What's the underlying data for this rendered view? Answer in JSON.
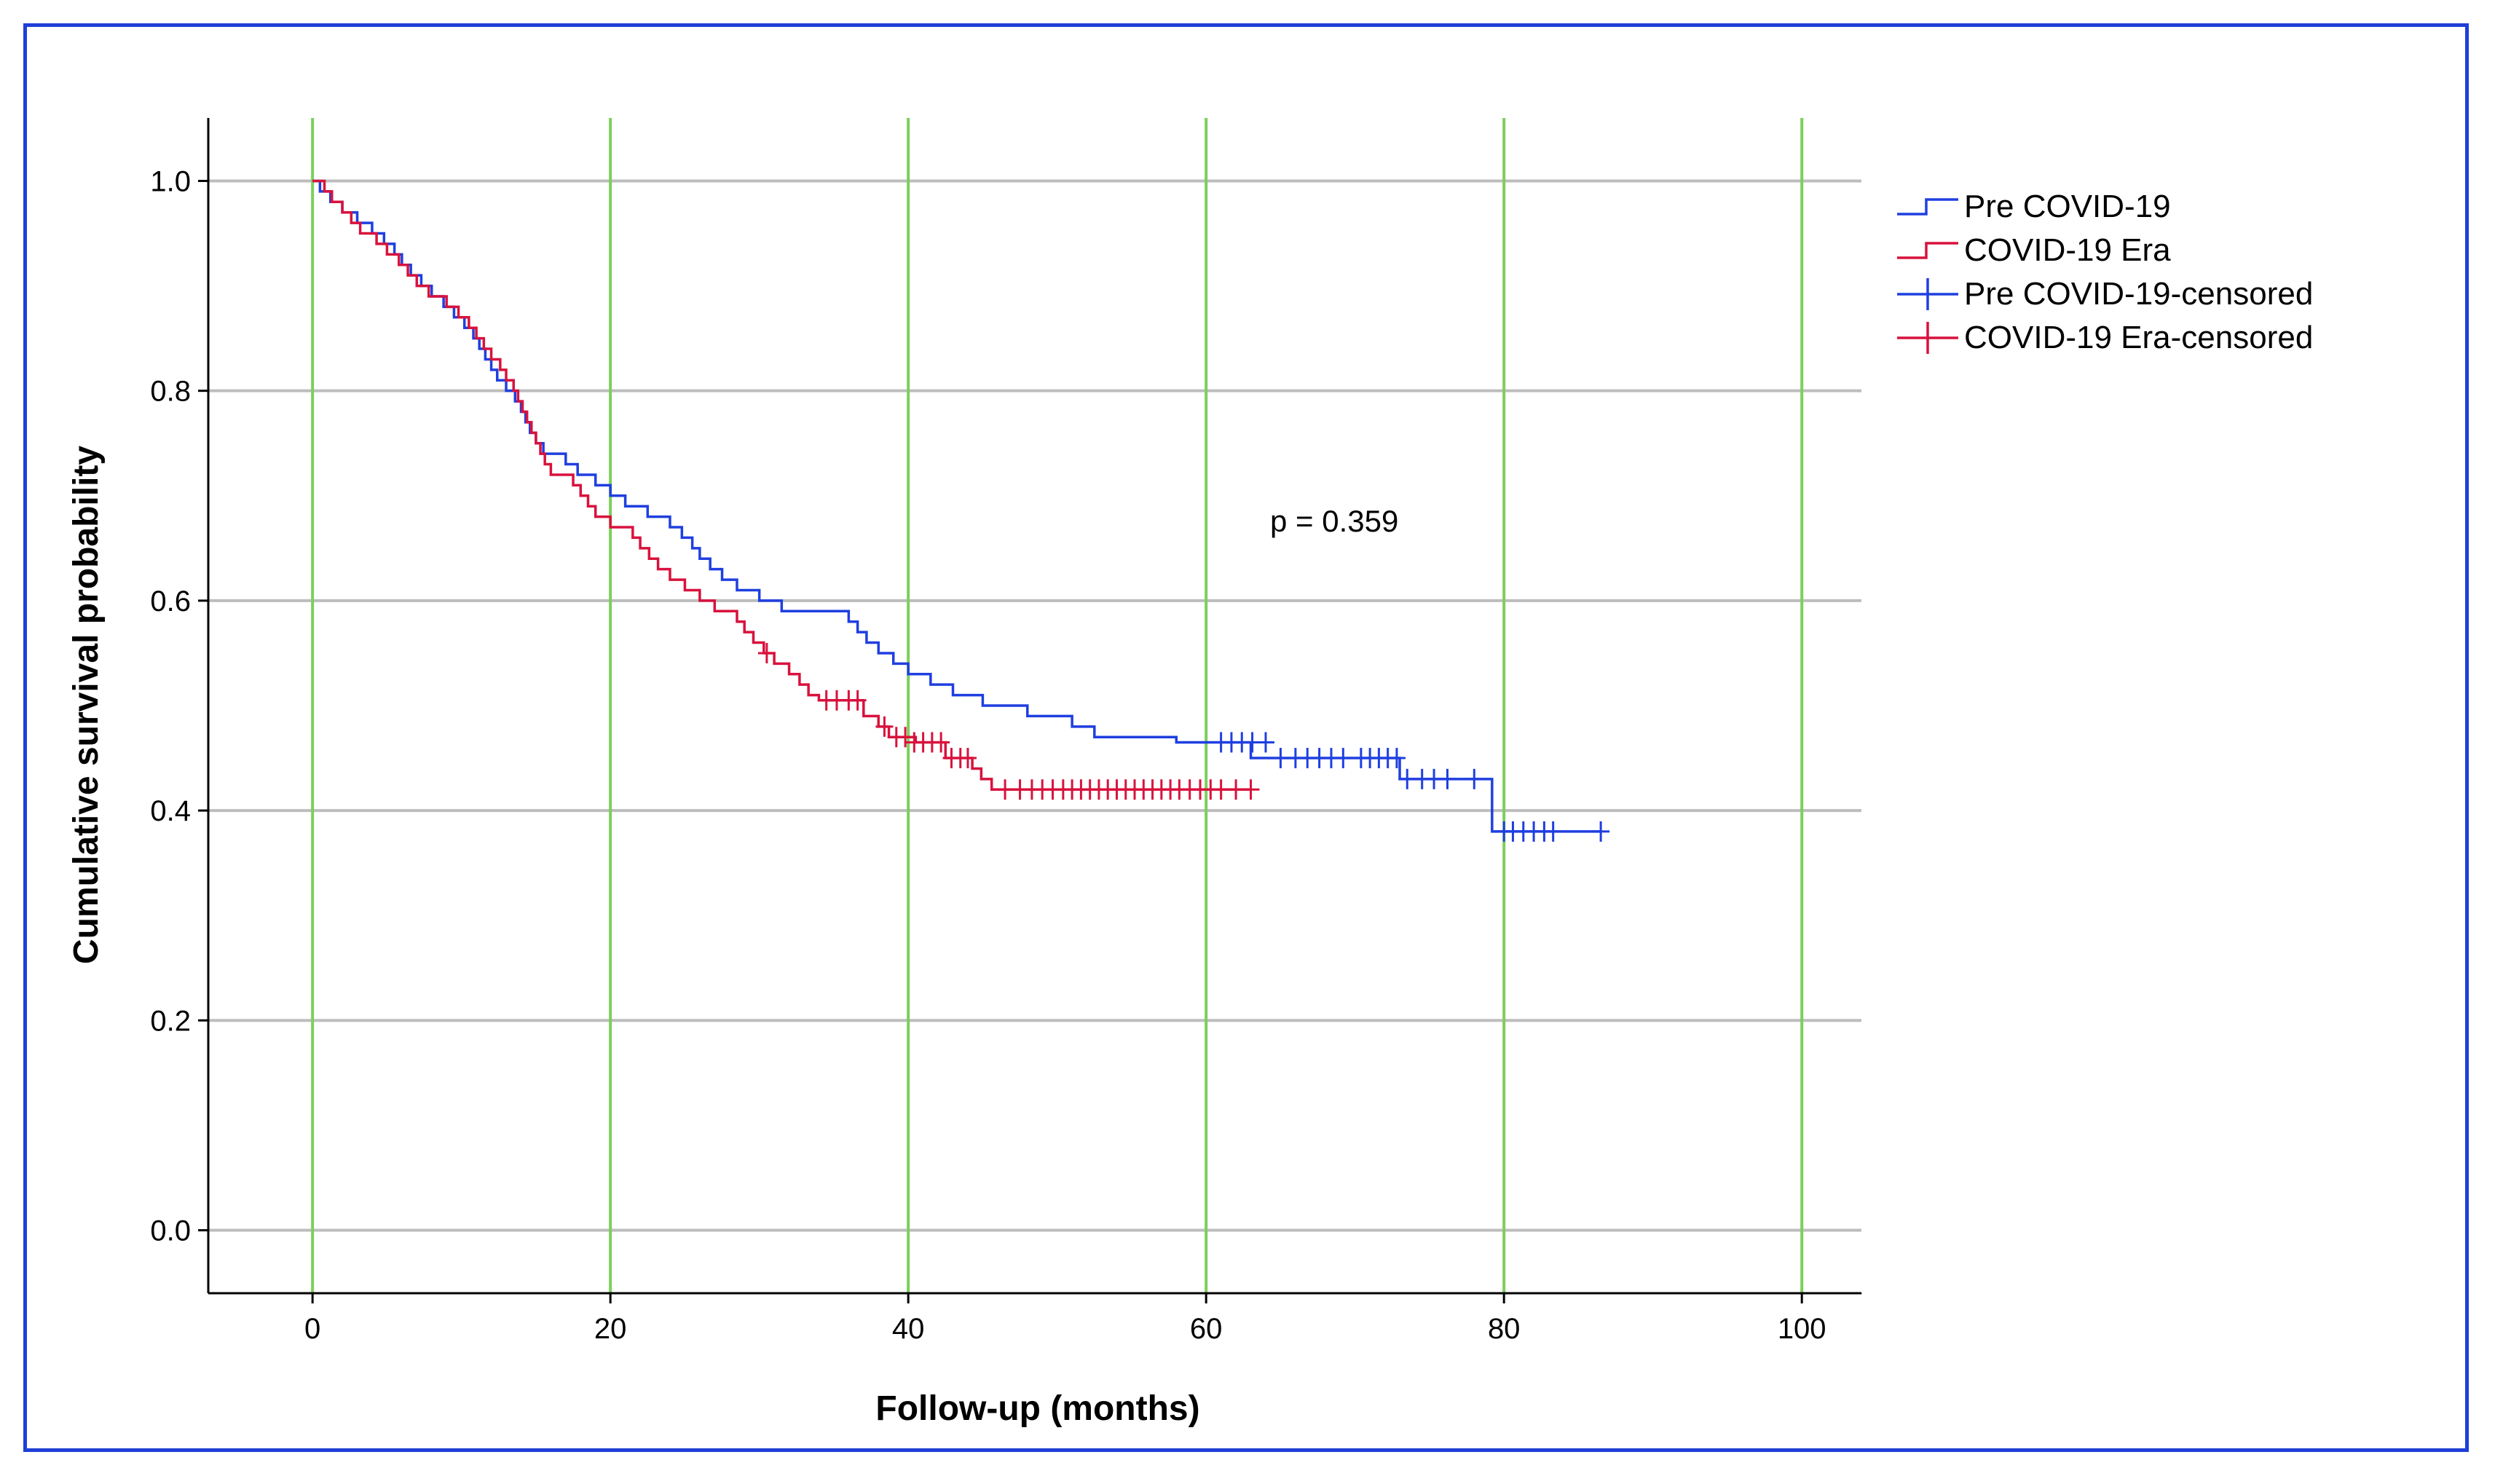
{
  "chart_data": {
    "type": "line",
    "subtype": "kaplan-meier",
    "title": "",
    "xlabel": "Follow-up (months)",
    "ylabel": "Cumulative survival probability",
    "xlim": [
      -7,
      104
    ],
    "ylim": [
      -0.06,
      1.06
    ],
    "xticks": [
      0,
      20,
      40,
      60,
      80,
      100
    ],
    "yticks": [
      0.0,
      0.2,
      0.4,
      0.6,
      0.8,
      1.0
    ],
    "xtick_labels": [
      "0",
      "20",
      "40",
      "60",
      "80",
      "100"
    ],
    "ytick_labels": [
      "0.0",
      "0.2",
      "0.4",
      "0.6",
      "0.8",
      "1.0"
    ],
    "grid": {
      "vertical": true,
      "horizontal": true,
      "vertical_color": "#7ccf5a",
      "horizontal_color": "#bdbdbd"
    },
    "legend_position": "right-top",
    "legend": [
      "Pre COVID-19",
      "COVID-19 Era",
      "Pre COVID-19-censored",
      "COVID-19 Era-censored"
    ],
    "annotation": "p = 0.359",
    "series": [
      {
        "name": "Pre COVID-19",
        "color": "#1f3fe0",
        "steps": [
          [
            0,
            1.0
          ],
          [
            0.5,
            0.99
          ],
          [
            1.2,
            0.98
          ],
          [
            2,
            0.97
          ],
          [
            3,
            0.96
          ],
          [
            4,
            0.95
          ],
          [
            4.8,
            0.94
          ],
          [
            5.5,
            0.93
          ],
          [
            6,
            0.92
          ],
          [
            6.6,
            0.91
          ],
          [
            7.3,
            0.9
          ],
          [
            8,
            0.89
          ],
          [
            8.8,
            0.88
          ],
          [
            9.5,
            0.87
          ],
          [
            10.2,
            0.86
          ],
          [
            10.8,
            0.85
          ],
          [
            11.2,
            0.84
          ],
          [
            11.6,
            0.83
          ],
          [
            12,
            0.82
          ],
          [
            12.4,
            0.81
          ],
          [
            13,
            0.8
          ],
          [
            13.6,
            0.79
          ],
          [
            14,
            0.78
          ],
          [
            14.3,
            0.77
          ],
          [
            14.6,
            0.76
          ],
          [
            15,
            0.75
          ],
          [
            15.5,
            0.74
          ],
          [
            17,
            0.73
          ],
          [
            17.8,
            0.72
          ],
          [
            19,
            0.71
          ],
          [
            20,
            0.7
          ],
          [
            21,
            0.69
          ],
          [
            22.5,
            0.68
          ],
          [
            24,
            0.67
          ],
          [
            24.8,
            0.66
          ],
          [
            25.5,
            0.65
          ],
          [
            26,
            0.64
          ],
          [
            26.7,
            0.63
          ],
          [
            27.5,
            0.62
          ],
          [
            28.5,
            0.61
          ],
          [
            30,
            0.6
          ],
          [
            31.5,
            0.59
          ],
          [
            36,
            0.58
          ],
          [
            36.6,
            0.57
          ],
          [
            37.2,
            0.56
          ],
          [
            38,
            0.55
          ],
          [
            39,
            0.54
          ],
          [
            40,
            0.53
          ],
          [
            41.5,
            0.52
          ],
          [
            43,
            0.51
          ],
          [
            45,
            0.5
          ],
          [
            48,
            0.49
          ],
          [
            51,
            0.48
          ],
          [
            52.5,
            0.47
          ],
          [
            58,
            0.465
          ],
          [
            63,
            0.45
          ],
          [
            73,
            0.43
          ],
          [
            79.2,
            0.38
          ],
          [
            86.5,
            0.38
          ]
        ],
        "censored": [
          [
            61,
            0.465
          ],
          [
            61.7,
            0.465
          ],
          [
            62.4,
            0.465
          ],
          [
            63.1,
            0.465
          ],
          [
            64,
            0.465
          ],
          [
            65,
            0.45
          ],
          [
            66,
            0.45
          ],
          [
            66.8,
            0.45
          ],
          [
            67.6,
            0.45
          ],
          [
            68.4,
            0.45
          ],
          [
            69.2,
            0.45
          ],
          [
            70.4,
            0.45
          ],
          [
            71,
            0.45
          ],
          [
            71.6,
            0.45
          ],
          [
            72.2,
            0.45
          ],
          [
            72.8,
            0.45
          ],
          [
            73.5,
            0.43
          ],
          [
            74.5,
            0.43
          ],
          [
            75.3,
            0.43
          ],
          [
            76.2,
            0.43
          ],
          [
            78,
            0.43
          ],
          [
            80,
            0.38
          ],
          [
            80.6,
            0.38
          ],
          [
            81.3,
            0.38
          ],
          [
            82,
            0.38
          ],
          [
            82.7,
            0.38
          ],
          [
            83.3,
            0.38
          ],
          [
            86.5,
            0.38
          ]
        ]
      },
      {
        "name": "COVID-19 Era",
        "color": "#d8123d",
        "steps": [
          [
            0,
            1.0
          ],
          [
            0.8,
            0.99
          ],
          [
            1.3,
            0.98
          ],
          [
            2,
            0.97
          ],
          [
            2.6,
            0.96
          ],
          [
            3.2,
            0.95
          ],
          [
            4.3,
            0.94
          ],
          [
            5,
            0.93
          ],
          [
            5.8,
            0.92
          ],
          [
            6.4,
            0.91
          ],
          [
            7,
            0.9
          ],
          [
            7.8,
            0.89
          ],
          [
            9,
            0.88
          ],
          [
            9.8,
            0.87
          ],
          [
            10.5,
            0.86
          ],
          [
            11,
            0.85
          ],
          [
            11.5,
            0.84
          ],
          [
            12,
            0.83
          ],
          [
            12.6,
            0.82
          ],
          [
            13,
            0.81
          ],
          [
            13.5,
            0.8
          ],
          [
            13.8,
            0.79
          ],
          [
            14.1,
            0.78
          ],
          [
            14.4,
            0.77
          ],
          [
            14.7,
            0.76
          ],
          [
            15,
            0.75
          ],
          [
            15.3,
            0.74
          ],
          [
            15.6,
            0.73
          ],
          [
            16,
            0.72
          ],
          [
            17.5,
            0.71
          ],
          [
            18,
            0.7
          ],
          [
            18.5,
            0.69
          ],
          [
            19,
            0.68
          ],
          [
            20,
            0.67
          ],
          [
            21.5,
            0.66
          ],
          [
            22,
            0.65
          ],
          [
            22.6,
            0.64
          ],
          [
            23.2,
            0.63
          ],
          [
            24,
            0.62
          ],
          [
            25,
            0.61
          ],
          [
            26,
            0.6
          ],
          [
            27,
            0.59
          ],
          [
            28.5,
            0.58
          ],
          [
            29,
            0.57
          ],
          [
            29.6,
            0.56
          ],
          [
            30.3,
            0.55
          ],
          [
            31,
            0.54
          ],
          [
            32,
            0.53
          ],
          [
            32.7,
            0.52
          ],
          [
            33.3,
            0.51
          ],
          [
            34,
            0.505
          ],
          [
            37,
            0.49
          ],
          [
            38,
            0.48
          ],
          [
            38.7,
            0.47
          ],
          [
            40.5,
            0.465
          ],
          [
            42.5,
            0.45
          ],
          [
            44.3,
            0.44
          ],
          [
            44.9,
            0.43
          ],
          [
            45.6,
            0.42
          ],
          [
            63,
            0.42
          ]
        ],
        "censored": [
          [
            30.5,
            0.55
          ],
          [
            34.5,
            0.505
          ],
          [
            35.2,
            0.505
          ],
          [
            36,
            0.505
          ],
          [
            36.6,
            0.505
          ],
          [
            38.4,
            0.48
          ],
          [
            39.2,
            0.47
          ],
          [
            39.8,
            0.47
          ],
          [
            40.4,
            0.465
          ],
          [
            41,
            0.465
          ],
          [
            41.6,
            0.465
          ],
          [
            42.2,
            0.465
          ],
          [
            42.9,
            0.45
          ],
          [
            43.5,
            0.45
          ],
          [
            44,
            0.45
          ],
          [
            46.5,
            0.42
          ],
          [
            47.5,
            0.42
          ],
          [
            48.3,
            0.42
          ],
          [
            49,
            0.42
          ],
          [
            49.7,
            0.42
          ],
          [
            50.4,
            0.42
          ],
          [
            51,
            0.42
          ],
          [
            51.6,
            0.42
          ],
          [
            52.2,
            0.42
          ],
          [
            52.8,
            0.42
          ],
          [
            53.4,
            0.42
          ],
          [
            54,
            0.42
          ],
          [
            54.6,
            0.42
          ],
          [
            55.2,
            0.42
          ],
          [
            55.8,
            0.42
          ],
          [
            56.4,
            0.42
          ],
          [
            57,
            0.42
          ],
          [
            57.6,
            0.42
          ],
          [
            58.2,
            0.42
          ],
          [
            58.9,
            0.42
          ],
          [
            59.6,
            0.42
          ],
          [
            60.3,
            0.42
          ],
          [
            61,
            0.42
          ],
          [
            62,
            0.42
          ],
          [
            63,
            0.42
          ]
        ]
      }
    ]
  }
}
